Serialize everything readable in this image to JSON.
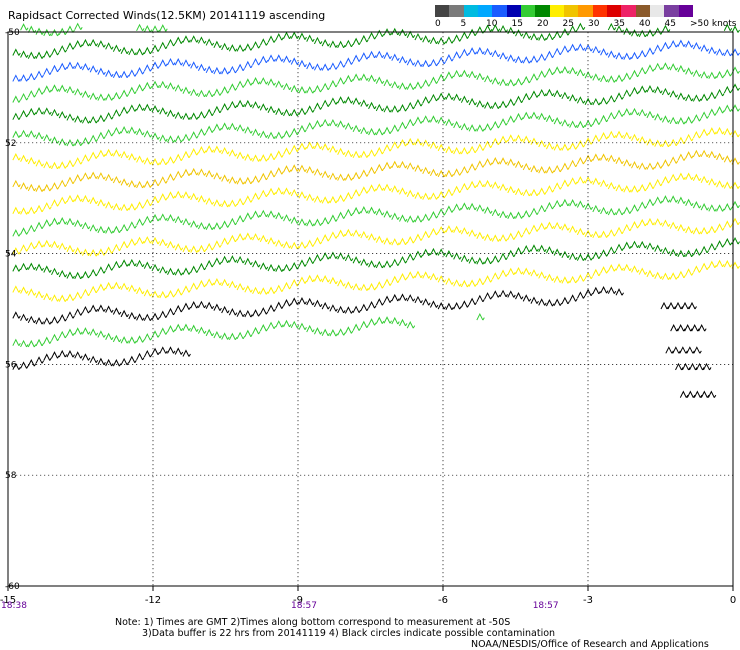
{
  "title": "Rapidsact Corrected Winds(12.5KM) 20141119 ascending",
  "legend": {
    "colors": [
      "#444444",
      "#7a7a7a",
      "#00bbe0",
      "#00a8ff",
      "#1a5cff",
      "#0000b0",
      "#33cc33",
      "#008800",
      "#ffee00",
      "#f0c400",
      "#ff9900",
      "#ff3300",
      "#dd0000",
      "#ee2266",
      "#8b5a2b",
      "#e8e8e8",
      "#7a3fa0",
      "#660099"
    ],
    "labels": [
      "0",
      "5",
      "10",
      "15",
      "20",
      "25",
      "30",
      "35",
      "40",
      "45",
      ">50 knots"
    ]
  },
  "map": {
    "lon_ticks": [
      -15,
      -12,
      -9,
      -6,
      -3,
      0
    ],
    "lat_ticks": [
      -50,
      -52,
      -54,
      -56,
      -58,
      -60
    ],
    "lon_labels": [
      "-15",
      "-12",
      "-9",
      "-6",
      "-3",
      "0"
    ],
    "lat_labels": [
      "-50",
      "52",
      "54",
      "56",
      "58",
      "-60"
    ],
    "time_labels": [
      {
        "lon": -15,
        "text": "18:38"
      },
      {
        "lon": -9,
        "text": "18:57"
      },
      {
        "lon": -4,
        "text": "18:57"
      }
    ],
    "swath_edge": [
      [
        -15.6,
        -56.4
      ],
      [
        -6,
        -55.3
      ],
      [
        -1.8,
        -54.7
      ],
      [
        0,
        -54.3
      ]
    ],
    "wind_bands": [
      {
        "lat": -50.0,
        "color": "#33cc33"
      },
      {
        "lat": -50.4,
        "color": "#008800"
      },
      {
        "lat": -50.8,
        "color": "#1a5cff"
      },
      {
        "lat": -51.2,
        "color": "#33cc33"
      },
      {
        "lat": -51.6,
        "color": "#008800"
      },
      {
        "lat": -52.0,
        "color": "#33cc33"
      },
      {
        "lat": -52.4,
        "color": "#ffee00"
      },
      {
        "lat": -52.8,
        "color": "#f0c400"
      },
      {
        "lat": -53.2,
        "color": "#ffee00"
      },
      {
        "lat": -53.6,
        "color": "#33cc33"
      },
      {
        "lat": -54.0,
        "color": "#ffee00"
      },
      {
        "lat": -54.4,
        "color": "#008800"
      },
      {
        "lat": -54.8,
        "color": "#ffee00"
      },
      {
        "lat": -55.2,
        "color": "#000000"
      },
      {
        "lat": -55.6,
        "color": "#33cc33"
      },
      {
        "lat": -56.0,
        "color": "#000000"
      }
    ],
    "isolated_winds": [
      {
        "lon": -1.2,
        "lat": -55.0,
        "color": "#000000"
      },
      {
        "lon": -1.0,
        "lat": -55.4,
        "color": "#000000"
      },
      {
        "lon": -1.1,
        "lat": -55.8,
        "color": "#000000"
      },
      {
        "lon": -0.9,
        "lat": -56.1,
        "color": "#000000"
      },
      {
        "lon": -0.8,
        "lat": -56.6,
        "color": "#000000"
      }
    ]
  },
  "notes": {
    "line1": "Note: 1) Times are GMT 2)Times along bottom correspond to measurement at -50S",
    "line2": "3)Data buffer is 22 hrs from 20141119 4) Black circles indicate possible contamination"
  },
  "credit": "NOAA/NESDIS/Office of Research and Applications"
}
